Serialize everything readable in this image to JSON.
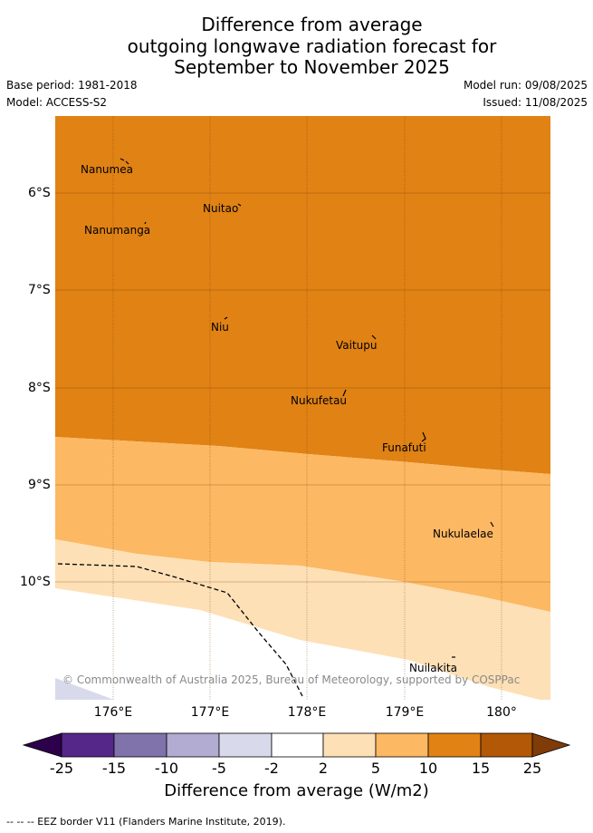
{
  "title": {
    "line1": "Difference from average",
    "line2": "outgoing longwave radiation forecast for",
    "line3": "September to November 2025"
  },
  "meta": {
    "base_period": "Base period: 1981-2018",
    "model": "Model: ACCESS-S2",
    "model_run": "Model run: 09/08/2025",
    "issued": "Issued: 11/08/2025"
  },
  "map": {
    "lon_range": [
      175.4,
      180.5
    ],
    "lat_range": [
      -11.2,
      -5.2
    ],
    "lon_ticks": [
      "176°E",
      "177°E",
      "178°E",
      "179°E",
      "180°"
    ],
    "lat_ticks": [
      "6°S",
      "7°S",
      "8°S",
      "9°S",
      "10°S"
    ],
    "places": [
      "Nanumea",
      "Nuitao",
      "Nanumanga",
      "Niu",
      "Vaitupu",
      "Nukufetau",
      "Funafuti",
      "Nukulaelae",
      "Nuilakita"
    ],
    "copyright": "© Commonwealth of Australia 2025, Bureau of Meteorology, supported by COSPPac",
    "zone_colors": {
      "w10_15": "#e08214",
      "w5_10": "#fdb863",
      "w2_5": "#fee0b6",
      "neutral": "#ffffff",
      "neg2_5": "#d8daeb"
    }
  },
  "colorbar": {
    "ticks": [
      "-25",
      "-15",
      "-10",
      "-5",
      "-2",
      "2",
      "5",
      "10",
      "15",
      "25"
    ],
    "colors": [
      "#2d004b",
      "#542788",
      "#8073ac",
      "#b2abd2",
      "#d8daeb",
      "#ffffff",
      "#fee0b6",
      "#fdb863",
      "#e08214",
      "#b35806",
      "#7f3b08"
    ],
    "title": "Difference from average (W/m2)"
  },
  "footer": "--  --  -- EEZ border V11 (Flanders Marine Institute, 2019)."
}
